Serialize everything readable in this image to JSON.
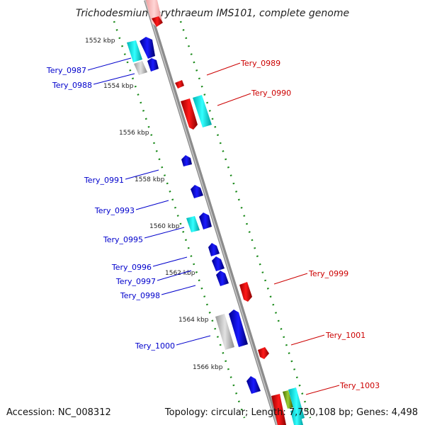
{
  "title": "Trichodesmium erythraeum IMS101, complete genome",
  "footer": {
    "accession": "Accession: NC_008312",
    "summary": "Topology: circular; Length: 7,750,108 bp; Genes: 4,498"
  },
  "colors": {
    "forward_label": "#cc0000",
    "reverse_label": "#0000cc",
    "strand_dots": "#1a8a1a",
    "backbone": "#8c8c8c"
  },
  "ticks": [
    {
      "label": "1552 kbp"
    },
    {
      "label": "1554 kbp"
    },
    {
      "label": "1556 kbp"
    },
    {
      "label": "1558 kbp"
    },
    {
      "label": "1560 kbp"
    },
    {
      "label": "1562 kbp"
    },
    {
      "label": "1564 kbp"
    },
    {
      "label": "1566 kbp"
    }
  ],
  "gene_labels": {
    "reverse": [
      "Tery_0987",
      "Tery_0988",
      "Tery_0991",
      "Tery_0993",
      "Tery_0995",
      "Tery_0996",
      "Tery_0997",
      "Tery_0998",
      "Tery_1000"
    ],
    "forward": [
      "Tery_0989",
      "Tery_0990",
      "Tery_0999",
      "Tery_1001",
      "Tery_1003"
    ]
  }
}
